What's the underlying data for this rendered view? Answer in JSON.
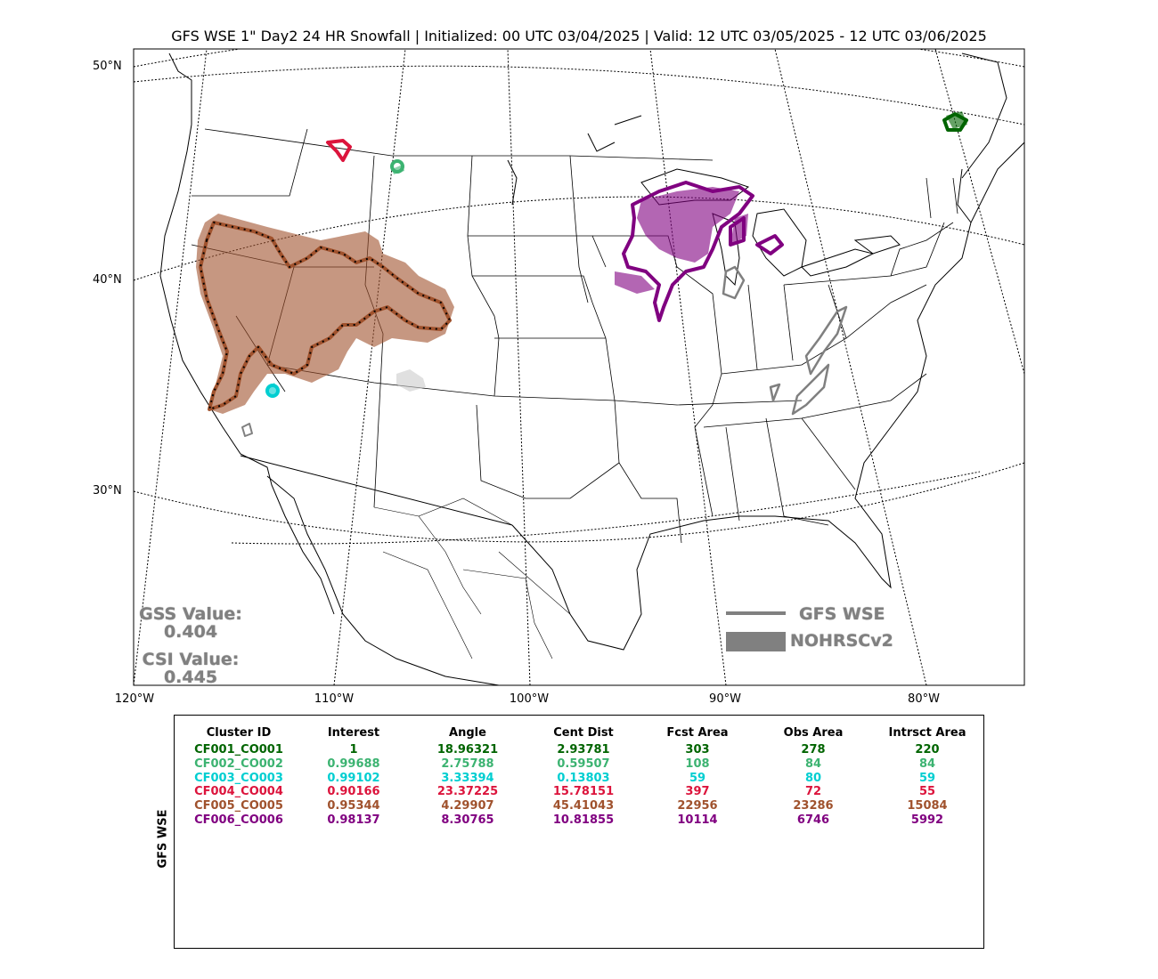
{
  "title": "GFS WSE 1\" Day2 24 HR Snowfall | Initialized: 00 UTC 03/04/2025 | Valid: 12 UTC 03/05/2025 - 12 UTC 03/06/2025",
  "axes": {
    "lon_labels": [
      "120°W",
      "110°W",
      "100°W",
      "90°W",
      "80°W"
    ],
    "lat_labels": [
      "50°N",
      "40°N",
      "30°N"
    ]
  },
  "stats": {
    "gss_label": "GSS Value:",
    "gss_value": "0.404",
    "csi_label": "CSI Value:",
    "csi_value": "0.445"
  },
  "legend": {
    "forecast": "GFS WSE",
    "observed": "NOHRSCv2",
    "color": "#808080"
  },
  "table": {
    "row_label": "GFS WSE",
    "headers": [
      "Cluster ID",
      "Interest",
      "Angle",
      "Cent Dist",
      "Fcst Area",
      "Obs Area",
      "Intrsct Area"
    ],
    "rows": [
      {
        "color": "#006400",
        "cells": [
          "CF001_CO001",
          "1",
          "18.96321",
          "2.93781",
          "303",
          "278",
          "220"
        ]
      },
      {
        "color": "#3cb371",
        "cells": [
          "CF002_CO002",
          "0.99688",
          "2.75788",
          "0.59507",
          "108",
          "84",
          "84"
        ]
      },
      {
        "color": "#00ced1",
        "cells": [
          "CF003_CO003",
          "0.99102",
          "3.33394",
          "0.13803",
          "59",
          "80",
          "59"
        ]
      },
      {
        "color": "#dc143c",
        "cells": [
          "CF004_CO004",
          "0.90166",
          "23.37225",
          "15.78151",
          "397",
          "72",
          "55"
        ]
      },
      {
        "color": "#a0522d",
        "cells": [
          "CF005_CO005",
          "0.95344",
          "4.29907",
          "45.41043",
          "22956",
          "23286",
          "15084"
        ]
      },
      {
        "color": "#800080",
        "cells": [
          "CF006_CO006",
          "0.98137",
          "8.30765",
          "10.81855",
          "10114",
          "6746",
          "5992"
        ]
      }
    ]
  },
  "clusters_colors": {
    "CF001": "#006400",
    "CF002": "#3cb371",
    "CF003": "#00ced1",
    "CF004": "#dc143c",
    "CF005": "#a0522d",
    "CF006": "#800080",
    "unmatched": "#808080"
  }
}
